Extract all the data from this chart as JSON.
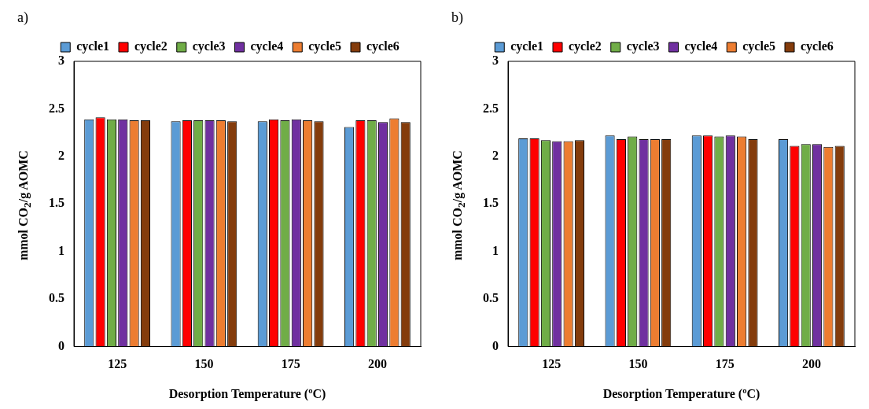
{
  "chart_data": [
    {
      "type": "bar",
      "annotations": [
        "a)"
      ],
      "xlabel": "Desorption Temperature (ºC)",
      "ylabel": "mmol CO$_{2}$/g AOMC",
      "categories": [
        "125",
        "150",
        "175",
        "200"
      ],
      "ylim": [
        0,
        3
      ],
      "yticks": [
        0,
        0.5,
        1,
        1.5,
        2,
        2.5,
        3
      ],
      "grid": false,
      "legend": "top",
      "series": [
        {
          "name": "cycle1",
          "color": "#5b9bd5",
          "values": [
            2.39,
            2.37,
            2.37,
            2.31
          ]
        },
        {
          "name": "cycle2",
          "color": "#ff0000",
          "values": [
            2.41,
            2.38,
            2.39,
            2.38
          ]
        },
        {
          "name": "cycle3",
          "color": "#70ad47",
          "values": [
            2.39,
            2.38,
            2.38,
            2.38
          ]
        },
        {
          "name": "cycle4",
          "color": "#7030a0",
          "values": [
            2.39,
            2.38,
            2.39,
            2.36
          ]
        },
        {
          "name": "cycle5",
          "color": "#ed7d31",
          "values": [
            2.38,
            2.38,
            2.38,
            2.4
          ]
        },
        {
          "name": "cycle6",
          "color": "#843c0c",
          "values": [
            2.38,
            2.37,
            2.37,
            2.36
          ]
        }
      ]
    },
    {
      "type": "bar",
      "annotations": [
        "b)"
      ],
      "xlabel": "Desorption Temperature (ºC)",
      "ylabel": "mmol CO$_{2}$/g AOMC",
      "categories": [
        "125",
        "150",
        "175",
        "200"
      ],
      "ylim": [
        0,
        3
      ],
      "yticks": [
        0,
        0.5,
        1,
        1.5,
        2,
        2.5,
        3
      ],
      "grid": false,
      "legend": "top",
      "series": [
        {
          "name": "cycle1",
          "color": "#5b9bd5",
          "values": [
            2.19,
            2.22,
            2.22,
            2.18
          ]
        },
        {
          "name": "cycle2",
          "color": "#ff0000",
          "values": [
            2.19,
            2.18,
            2.22,
            2.11
          ]
        },
        {
          "name": "cycle3",
          "color": "#70ad47",
          "values": [
            2.17,
            2.21,
            2.21,
            2.13
          ]
        },
        {
          "name": "cycle4",
          "color": "#7030a0",
          "values": [
            2.16,
            2.18,
            2.22,
            2.13
          ]
        },
        {
          "name": "cycle5",
          "color": "#ed7d31",
          "values": [
            2.16,
            2.18,
            2.21,
            2.1
          ]
        },
        {
          "name": "cycle6",
          "color": "#843c0c",
          "values": [
            2.17,
            2.18,
            2.18,
            2.11
          ]
        }
      ]
    }
  ]
}
